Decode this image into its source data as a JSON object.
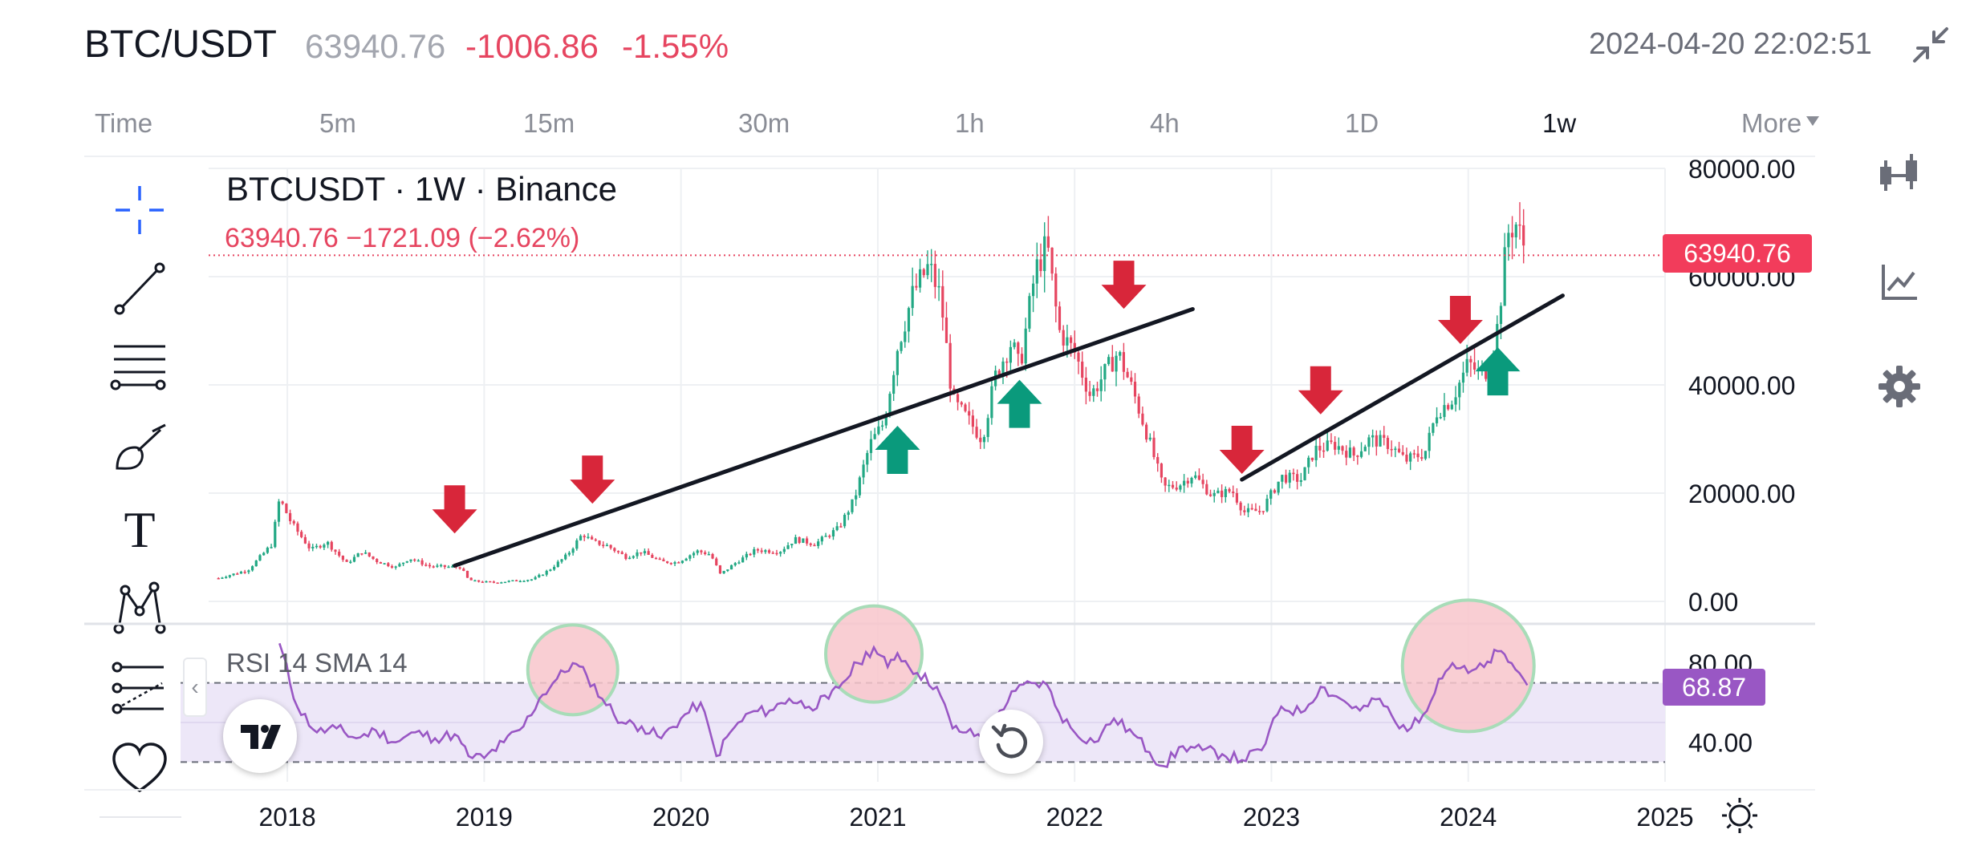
{
  "header": {
    "symbol": "BTC/USDT",
    "last_price": "63940.76",
    "change": "-1006.86",
    "change_percent": "-1.55%",
    "datetime": "2024-04-20 22:02:51",
    "collapse_icon": "collapse-arrows-icon"
  },
  "timeframes": [
    {
      "label": "Time",
      "active": false
    },
    {
      "label": "5m",
      "active": false
    },
    {
      "label": "15m",
      "active": false
    },
    {
      "label": "30m",
      "active": false
    },
    {
      "label": "1h",
      "active": false
    },
    {
      "label": "4h",
      "active": false
    },
    {
      "label": "1D",
      "active": false
    },
    {
      "label": "1w",
      "active": true
    },
    {
      "label": "More",
      "active": false
    }
  ],
  "left_toolbar": [
    {
      "name": "crosshair-icon",
      "color": "#2962ff"
    },
    {
      "name": "trend-line-icon"
    },
    {
      "name": "fib-lines-icon"
    },
    {
      "name": "brush-icon"
    },
    {
      "name": "text-icon",
      "label": "T"
    },
    {
      "name": "pattern-icon"
    },
    {
      "name": "prediction-icon"
    },
    {
      "name": "favorite-heart-icon"
    }
  ],
  "right_toolbar": [
    {
      "name": "candles-icon"
    },
    {
      "name": "indicators-icon"
    },
    {
      "name": "settings-gear-icon"
    }
  ],
  "colors": {
    "up": "#22a884",
    "down": "#e64560",
    "arrow_down": "#d8263a",
    "arrow_up": "#0a9a7c",
    "rsi_line": "#9957c4",
    "rsi_band": "#ede7f8",
    "circle_fill": "#f8c6cb",
    "circle_stroke": "#a8dcb8"
  },
  "chart_data": {
    "type": "candlestick",
    "legend": {
      "title": "BTCUSDT · 1W · Binance",
      "ohlc": "63940.76  −1721.09 (−2.62%)"
    },
    "current_price": 63940.76,
    "current_price_label": "63940.76",
    "y_range": [
      0,
      80000
    ],
    "y_ticks": [
      "80000.00",
      "60000.00",
      "40000.00",
      "20000.00",
      "0.00"
    ],
    "x_ticks": [
      "2018",
      "2019",
      "2020",
      "2021",
      "2022",
      "2023",
      "2024",
      "2025"
    ],
    "x_range": [
      2017.6,
      2025.0
    ],
    "price_series": [
      [
        2017.65,
        4300
      ],
      [
        2017.8,
        5800
      ],
      [
        2017.92,
        10500
      ],
      [
        2017.96,
        19000
      ],
      [
        2018.02,
        14500
      ],
      [
        2018.12,
        9500
      ],
      [
        2018.2,
        11000
      ],
      [
        2018.3,
        7000
      ],
      [
        2018.38,
        9200
      ],
      [
        2018.45,
        7500
      ],
      [
        2018.55,
        6300
      ],
      [
        2018.62,
        8000
      ],
      [
        2018.72,
        6500
      ],
      [
        2018.8,
        6400
      ],
      [
        2018.88,
        6300
      ],
      [
        2018.92,
        4000
      ],
      [
        2018.96,
        3700
      ],
      [
        2019.05,
        3500
      ],
      [
        2019.15,
        3800
      ],
      [
        2019.25,
        4100
      ],
      [
        2019.33,
        5800
      ],
      [
        2019.42,
        8500
      ],
      [
        2019.5,
        12500
      ],
      [
        2019.55,
        11000
      ],
      [
        2019.62,
        10400
      ],
      [
        2019.72,
        8200
      ],
      [
        2019.8,
        9200
      ],
      [
        2019.9,
        7300
      ],
      [
        2019.98,
        7200
      ],
      [
        2020.08,
        9300
      ],
      [
        2020.15,
        8700
      ],
      [
        2020.2,
        5000
      ],
      [
        2020.28,
        7200
      ],
      [
        2020.38,
        9500
      ],
      [
        2020.5,
        9200
      ],
      [
        2020.58,
        11500
      ],
      [
        2020.68,
        10600
      ],
      [
        2020.8,
        13500
      ],
      [
        2020.88,
        18800
      ],
      [
        2020.96,
        29000
      ],
      [
        2021.03,
        33000
      ],
      [
        2021.1,
        47000
      ],
      [
        2021.18,
        57000
      ],
      [
        2021.26,
        62000
      ],
      [
        2021.32,
        56000
      ],
      [
        2021.38,
        37000
      ],
      [
        2021.45,
        34000
      ],
      [
        2021.53,
        30000
      ],
      [
        2021.6,
        42000
      ],
      [
        2021.68,
        48000
      ],
      [
        2021.72,
        43000
      ],
      [
        2021.8,
        61000
      ],
      [
        2021.86,
        66000
      ],
      [
        2021.92,
        50000
      ],
      [
        2022.0,
        46000
      ],
      [
        2022.08,
        38000
      ],
      [
        2022.15,
        42000
      ],
      [
        2022.22,
        46000
      ],
      [
        2022.3,
        38500
      ],
      [
        2022.38,
        29500
      ],
      [
        2022.45,
        21000
      ],
      [
        2022.53,
        21500
      ],
      [
        2022.6,
        23500
      ],
      [
        2022.7,
        19500
      ],
      [
        2022.8,
        20500
      ],
      [
        2022.86,
        16500
      ],
      [
        2022.95,
        16800
      ],
      [
        2023.05,
        23000
      ],
      [
        2023.15,
        22500
      ],
      [
        2023.22,
        28000
      ],
      [
        2023.32,
        29000
      ],
      [
        2023.42,
        27000
      ],
      [
        2023.5,
        30000
      ],
      [
        2023.6,
        29000
      ],
      [
        2023.68,
        26000
      ],
      [
        2023.78,
        27500
      ],
      [
        2023.84,
        35000
      ],
      [
        2023.92,
        37500
      ],
      [
        2024.0,
        44000
      ],
      [
        2024.06,
        42000
      ],
      [
        2024.1,
        43000
      ],
      [
        2024.15,
        51000
      ],
      [
        2024.2,
        68000
      ],
      [
        2024.24,
        70000
      ],
      [
        2024.27,
        67000
      ],
      [
        2024.3,
        63940
      ]
    ],
    "trend_lines": [
      {
        "x1": 2018.85,
        "y1": 6600,
        "x2": 2022.6,
        "y2": 54000
      },
      {
        "x1": 2022.85,
        "y1": 22500,
        "x2": 2024.48,
        "y2": 56500
      }
    ],
    "down_arrows": [
      [
        2018.85,
        17000
      ],
      [
        2019.55,
        22500
      ],
      [
        2022.25,
        58500
      ],
      [
        2022.85,
        28000
      ],
      [
        2023.25,
        39000
      ],
      [
        2023.96,
        52000
      ]
    ],
    "up_arrows": [
      [
        2021.1,
        28000
      ],
      [
        2021.72,
        36500
      ],
      [
        2024.15,
        42500
      ]
    ],
    "rsi": {
      "label": "RSI 14 SMA 14",
      "current": "68.87",
      "y_range": [
        20,
        95
      ],
      "y_ticks": [
        "80.00",
        "40.00"
      ],
      "band": [
        30,
        70
      ],
      "highlight_circles": [
        [
          2019.45,
          75
        ],
        [
          2020.98,
          83
        ],
        [
          2024.0,
          77
        ]
      ],
      "series": [
        [
          2017.96,
          90
        ],
        [
          2018.05,
          58
        ],
        [
          2018.15,
          45
        ],
        [
          2018.25,
          47
        ],
        [
          2018.35,
          42
        ],
        [
          2018.45,
          46
        ],
        [
          2018.55,
          40
        ],
        [
          2018.65,
          45
        ],
        [
          2018.75,
          42
        ],
        [
          2018.85,
          44
        ],
        [
          2018.92,
          33
        ],
        [
          2019.0,
          32
        ],
        [
          2019.1,
          40
        ],
        [
          2019.2,
          48
        ],
        [
          2019.28,
          62
        ],
        [
          2019.35,
          70
        ],
        [
          2019.45,
          80
        ],
        [
          2019.52,
          74
        ],
        [
          2019.6,
          62
        ],
        [
          2019.7,
          50
        ],
        [
          2019.8,
          48
        ],
        [
          2019.9,
          42
        ],
        [
          2020.0,
          52
        ],
        [
          2020.1,
          60
        ],
        [
          2020.18,
          33
        ],
        [
          2020.25,
          45
        ],
        [
          2020.35,
          55
        ],
        [
          2020.45,
          56
        ],
        [
          2020.55,
          62
        ],
        [
          2020.65,
          58
        ],
        [
          2020.75,
          62
        ],
        [
          2020.82,
          70
        ],
        [
          2020.9,
          80
        ],
        [
          2020.98,
          88
        ],
        [
          2021.05,
          78
        ],
        [
          2021.1,
          85
        ],
        [
          2021.2,
          75
        ],
        [
          2021.3,
          68
        ],
        [
          2021.38,
          47
        ],
        [
          2021.45,
          45
        ],
        [
          2021.55,
          42
        ],
        [
          2021.62,
          56
        ],
        [
          2021.7,
          66
        ],
        [
          2021.78,
          70
        ],
        [
          2021.86,
          69
        ],
        [
          2021.92,
          55
        ],
        [
          2022.0,
          45
        ],
        [
          2022.1,
          40
        ],
        [
          2022.2,
          52
        ],
        [
          2022.3,
          44
        ],
        [
          2022.38,
          35
        ],
        [
          2022.45,
          28
        ],
        [
          2022.55,
          38
        ],
        [
          2022.65,
          36
        ],
        [
          2022.75,
          34
        ],
        [
          2022.85,
          31
        ],
        [
          2022.95,
          36
        ],
        [
          2023.05,
          58
        ],
        [
          2023.15,
          55
        ],
        [
          2023.25,
          68
        ],
        [
          2023.35,
          62
        ],
        [
          2023.45,
          56
        ],
        [
          2023.55,
          62
        ],
        [
          2023.65,
          47
        ],
        [
          2023.75,
          50
        ],
        [
          2023.85,
          72
        ],
        [
          2023.92,
          80
        ],
        [
          2024.0,
          75
        ],
        [
          2024.08,
          78
        ],
        [
          2024.15,
          86
        ],
        [
          2024.22,
          80
        ],
        [
          2024.3,
          68.87
        ]
      ]
    }
  }
}
